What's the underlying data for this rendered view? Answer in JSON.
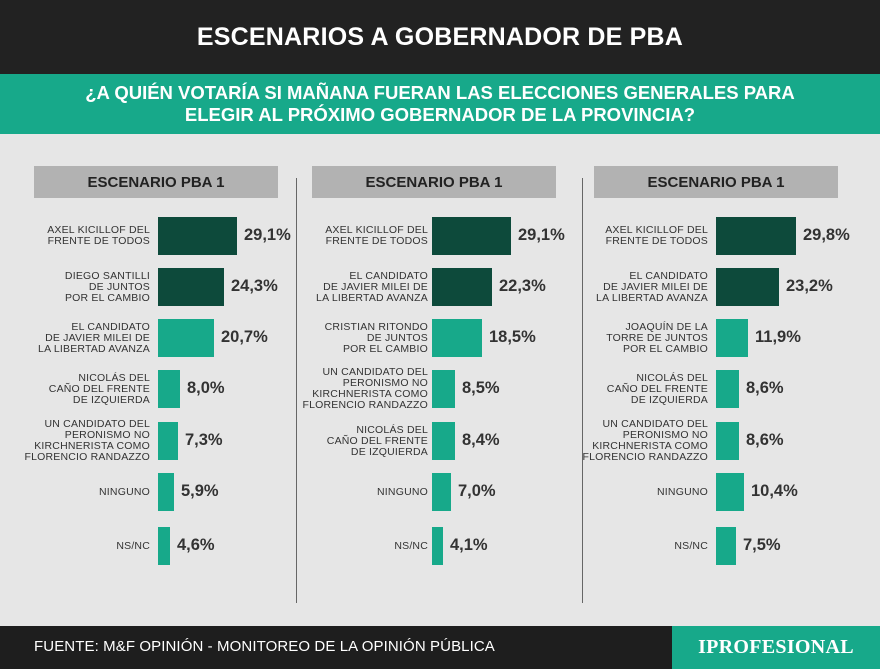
{
  "header": {
    "title": "ESCENARIOS A GOBERNADOR DE PBA"
  },
  "question": {
    "line1": "¿A QUIÉN VOTARÍA SI MAÑANA FUERAN LAS ELECCIONES GENERALES PARA",
    "line2": "ELEGIR AL PRÓXIMO GOBERNADOR DE LA PROVINCIA?"
  },
  "colors": {
    "dark": "#0d4a3b",
    "light": "#17a98a",
    "header": "#222222",
    "panel_title": "#b2b2b2",
    "background": "#e6e6e6"
  },
  "chart_data": [
    {
      "type": "bar",
      "title": "ESCENARIO PBA 1",
      "categories": [
        "AXEL KICILLOF DEL\nFRENTE DE TODOS",
        "DIEGO SANTILLI\nDE JUNTOS\nPOR EL CAMBIO",
        "EL CANDIDATO\nDE JAVIER MILEI DE\nLA LIBERTAD AVANZA",
        "NICOLÁS DEL\nCAÑO DEL FRENTE\nDE IZQUIERDA",
        "UN CANDIDATO DEL\nPERONISMO NO\nKIRCHNERISTA COMO\nFLORENCIO RANDAZZO",
        "NINGUNO",
        "NS/NC"
      ],
      "values": [
        29.1,
        24.3,
        20.7,
        8.0,
        7.3,
        5.9,
        4.6
      ],
      "value_labels": [
        "29,1%",
        "24,3%",
        "20,7%",
        "8,0%",
        "7,3%",
        "5,9%",
        "4,6%"
      ],
      "bar_colors": [
        "dark",
        "dark",
        "light",
        "light",
        "light",
        "light",
        "light"
      ]
    },
    {
      "type": "bar",
      "title": "ESCENARIO PBA 1",
      "categories": [
        "AXEL KICILLOF DEL\nFRENTE DE TODOS",
        "EL CANDIDATO\nDE JAVIER MILEI DE\nLA LIBERTAD AVANZA",
        "CRISTIAN RITONDO\nDE JUNTOS\nPOR EL CAMBIO",
        "UN CANDIDATO DEL\nPERONISMO NO\nKIRCHNERISTA COMO\nFLORENCIO RANDAZZO",
        "NICOLÁS DEL\nCAÑO DEL FRENTE\nDE IZQUIERDA",
        "NINGUNO",
        "NS/NC"
      ],
      "values": [
        29.1,
        22.3,
        18.5,
        8.5,
        8.4,
        7.0,
        4.1
      ],
      "value_labels": [
        "29,1%",
        "22,3%",
        "18,5%",
        "8,5%",
        "8,4%",
        "7,0%",
        "4,1%"
      ],
      "bar_colors": [
        "dark",
        "dark",
        "light",
        "light",
        "light",
        "light",
        "light"
      ]
    },
    {
      "type": "bar",
      "title": "ESCENARIO PBA 1",
      "categories": [
        "AXEL KICILLOF DEL\nFRENTE DE TODOS",
        "EL CANDIDATO\nDE JAVIER MILEI DE\nLA LIBERTAD AVANZA",
        "JOAQUÍN DE LA\nTORRE DE JUNTOS\nPOR EL CAMBIO",
        "NICOLÁS DEL\nCAÑO DEL FRENTE\nDE IZQUIERDA",
        "UN CANDIDATO DEL\nPERONISMO NO\nKIRCHNERISTA COMO\nFLORENCIO RANDAZZO",
        "NINGUNO",
        "NS/NC"
      ],
      "values": [
        29.8,
        23.2,
        11.9,
        8.6,
        8.6,
        10.4,
        7.5
      ],
      "value_labels": [
        "29,8%",
        "23,2%",
        "11,9%",
        "8,6%",
        "8,6%",
        "10,4%",
        "7,5%"
      ],
      "bar_colors": [
        "dark",
        "dark",
        "light",
        "light",
        "light",
        "light",
        "light"
      ]
    }
  ],
  "footer": {
    "source": "FUENTE: M&F OPINIÓN - MONITOREO DE LA OPINIÓN PÚBLICA",
    "logo": "IPROFESIONAL"
  }
}
